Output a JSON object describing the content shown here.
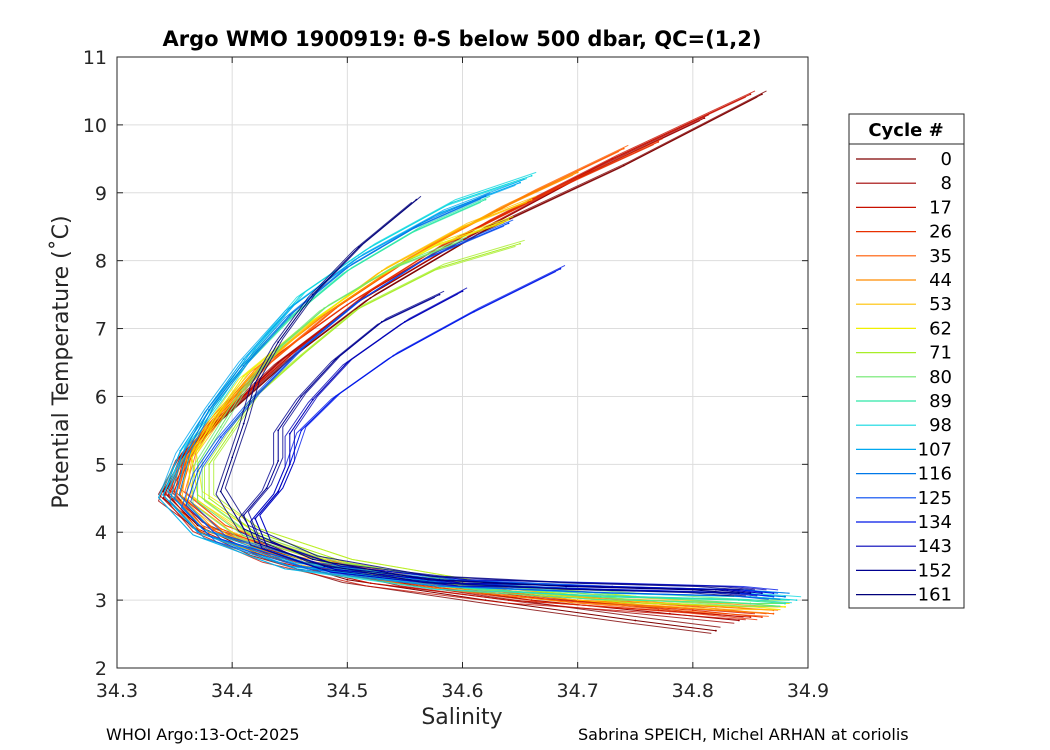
{
  "chart_data": {
    "type": "line",
    "title": "Argo WMO 1900919: θ-S below 500 dbar,  QC=(1,2)",
    "xlabel": "Salinity",
    "ylabel": "Potential Temperature (˚C)",
    "xlim": [
      34.3,
      34.9
    ],
    "ylim": [
      2,
      11
    ],
    "xticks": [
      "34.3",
      "34.4",
      "34.5",
      "34.6",
      "34.7",
      "34.8",
      "34.9"
    ],
    "yticks": [
      "2",
      "3",
      "4",
      "5",
      "6",
      "7",
      "8",
      "9",
      "10",
      "11"
    ],
    "grid": true,
    "legend": {
      "title": "Cycle #",
      "position": "right",
      "entries": [
        {
          "label": "0",
          "color": "#7f0000"
        },
        {
          "label": "8",
          "color": "#a00000"
        },
        {
          "label": "17",
          "color": "#c81000"
        },
        {
          "label": "26",
          "color": "#e83000"
        },
        {
          "label": "35",
          "color": "#ff5a00"
        },
        {
          "label": "44",
          "color": "#ff8c00"
        },
        {
          "label": "53",
          "color": "#ffc000"
        },
        {
          "label": "62",
          "color": "#f0f000"
        },
        {
          "label": "71",
          "color": "#a8ee28"
        },
        {
          "label": "80",
          "color": "#6ee86e"
        },
        {
          "label": "89",
          "color": "#2ee8a8"
        },
        {
          "label": "98",
          "color": "#10d8e0"
        },
        {
          "label": "107",
          "color": "#00a8f0"
        },
        {
          "label": "116",
          "color": "#0078e8"
        },
        {
          "label": "125",
          "color": "#0048f0"
        },
        {
          "label": "134",
          "color": "#0018e8"
        },
        {
          "label": "143",
          "color": "#0000b8"
        },
        {
          "label": "152",
          "color": "#000090"
        },
        {
          "label": "161",
          "color": "#00007a"
        }
      ]
    },
    "series": [
      {
        "name": "0",
        "color": "#7f0000",
        "x": [
          34.86,
          34.74,
          34.62,
          34.52,
          34.45,
          34.4,
          34.36,
          34.34,
          34.37,
          34.42,
          34.5,
          34.62,
          34.75,
          34.82
        ],
        "y": [
          10.45,
          9.4,
          8.45,
          7.45,
          6.55,
          5.8,
          5.2,
          4.6,
          4.1,
          3.7,
          3.3,
          3.0,
          2.7,
          2.55
        ]
      },
      {
        "name": "8",
        "color": "#a00000",
        "x": [
          34.81,
          34.71,
          34.6,
          34.51,
          34.44,
          34.39,
          34.355,
          34.34,
          34.38,
          34.46,
          34.55,
          34.66,
          34.78,
          34.84
        ],
        "y": [
          10.1,
          9.3,
          8.3,
          7.4,
          6.5,
          5.7,
          5.1,
          4.5,
          4.0,
          3.6,
          3.25,
          3.0,
          2.8,
          2.7
        ]
      },
      {
        "name": "17",
        "color": "#c81000",
        "x": [
          34.85,
          34.73,
          34.62,
          34.52,
          34.45,
          34.4,
          34.365,
          34.345,
          34.37,
          34.43,
          34.52,
          34.64,
          34.77,
          34.85
        ],
        "y": [
          10.45,
          9.5,
          8.55,
          7.55,
          6.6,
          5.85,
          5.2,
          4.55,
          4.05,
          3.6,
          3.25,
          3.0,
          2.85,
          2.75
        ]
      },
      {
        "name": "26",
        "color": "#e83000",
        "x": [
          34.77,
          34.68,
          34.58,
          34.5,
          34.43,
          34.39,
          34.36,
          34.35,
          34.39,
          34.46,
          34.56,
          34.68,
          34.8,
          34.86
        ],
        "y": [
          9.75,
          9.05,
          8.2,
          7.35,
          6.5,
          5.8,
          5.2,
          4.6,
          4.05,
          3.6,
          3.25,
          3.0,
          2.85,
          2.75
        ]
      },
      {
        "name": "35",
        "color": "#ff5a00",
        "x": [
          34.74,
          34.66,
          34.57,
          34.49,
          34.43,
          34.39,
          34.365,
          34.355,
          34.39,
          34.46,
          34.57,
          34.7,
          34.82,
          34.87
        ],
        "y": [
          9.65,
          9.0,
          8.2,
          7.3,
          6.45,
          5.75,
          5.15,
          4.55,
          4.05,
          3.6,
          3.25,
          3.0,
          2.85,
          2.8
        ]
      },
      {
        "name": "44",
        "color": "#ff8c00",
        "x": [
          34.7,
          34.63,
          34.55,
          34.48,
          34.42,
          34.385,
          34.36,
          34.35,
          34.38,
          34.45,
          34.56,
          34.7,
          34.82,
          34.87
        ],
        "y": [
          9.3,
          8.75,
          8.0,
          7.2,
          6.4,
          5.7,
          5.1,
          4.5,
          4.0,
          3.6,
          3.25,
          3.0,
          2.9,
          2.85
        ]
      },
      {
        "name": "53",
        "color": "#ffc000",
        "x": [
          34.66,
          34.6,
          34.53,
          34.47,
          34.42,
          34.39,
          34.365,
          34.36,
          34.4,
          34.48,
          34.6,
          34.73,
          34.84,
          34.88
        ],
        "y": [
          8.9,
          8.5,
          7.85,
          7.1,
          6.35,
          5.7,
          5.1,
          4.5,
          4.0,
          3.55,
          3.2,
          3.0,
          2.9,
          2.9
        ]
      },
      {
        "name": "62",
        "color": "#f0f000",
        "x": [
          34.64,
          34.58,
          34.52,
          34.46,
          34.41,
          34.385,
          34.365,
          34.37,
          34.42,
          34.5,
          34.62,
          34.75,
          34.85,
          34.88
        ],
        "y": [
          8.6,
          8.25,
          7.7,
          7.0,
          6.3,
          5.7,
          5.1,
          4.55,
          4.0,
          3.55,
          3.2,
          3.0,
          2.95,
          2.9
        ]
      },
      {
        "name": "71",
        "color": "#a8ee28",
        "x": [
          34.65,
          34.58,
          34.51,
          34.46,
          34.42,
          34.4,
          34.38,
          34.38,
          34.42,
          34.5,
          34.62,
          34.75,
          34.85,
          34.88
        ],
        "y": [
          8.25,
          7.9,
          7.3,
          6.6,
          6.0,
          5.5,
          5.0,
          4.5,
          4.0,
          3.55,
          3.2,
          3.0,
          2.95,
          2.95
        ]
      },
      {
        "name": "80",
        "color": "#6ee86e",
        "x": [
          34.6,
          34.54,
          34.48,
          34.44,
          34.41,
          34.39,
          34.37,
          34.37,
          34.41,
          34.49,
          34.61,
          34.75,
          34.85,
          34.88
        ],
        "y": [
          8.3,
          7.9,
          7.3,
          6.7,
          6.1,
          5.55,
          5.0,
          4.45,
          3.95,
          3.5,
          3.2,
          3.05,
          2.95,
          2.95
        ]
      },
      {
        "name": "89",
        "color": "#2ee8a8",
        "x": [
          34.62,
          34.56,
          34.5,
          34.45,
          34.41,
          34.38,
          34.36,
          34.35,
          34.38,
          34.46,
          34.58,
          34.72,
          34.84,
          34.88
        ],
        "y": [
          8.9,
          8.45,
          7.85,
          7.15,
          6.45,
          5.8,
          5.15,
          4.5,
          3.95,
          3.5,
          3.2,
          3.05,
          3.0,
          2.95
        ]
      },
      {
        "name": "98",
        "color": "#10d8e0",
        "x": [
          34.66,
          34.59,
          34.52,
          34.46,
          34.42,
          34.39,
          34.36,
          34.34,
          34.37,
          34.45,
          34.58,
          34.73,
          34.85,
          34.89
        ],
        "y": [
          9.25,
          8.85,
          8.2,
          7.5,
          6.7,
          5.95,
          5.25,
          4.55,
          4.0,
          3.5,
          3.2,
          3.1,
          3.05,
          3.0
        ]
      },
      {
        "name": "107",
        "color": "#00a8f0",
        "x": [
          34.65,
          34.58,
          34.51,
          34.45,
          34.41,
          34.38,
          34.355,
          34.34,
          34.37,
          34.45,
          34.58,
          34.72,
          34.84,
          34.88
        ],
        "y": [
          9.15,
          8.7,
          8.05,
          7.3,
          6.55,
          5.85,
          5.2,
          4.55,
          4.0,
          3.5,
          3.25,
          3.15,
          3.1,
          3.05
        ]
      },
      {
        "name": "116",
        "color": "#0078e8",
        "x": [
          34.62,
          34.56,
          34.5,
          34.45,
          34.41,
          34.38,
          34.36,
          34.35,
          34.38,
          34.46,
          34.58,
          34.72,
          34.84,
          34.88
        ],
        "y": [
          8.95,
          8.5,
          7.9,
          7.2,
          6.45,
          5.8,
          5.15,
          4.5,
          3.95,
          3.5,
          3.25,
          3.15,
          3.1,
          3.05
        ]
      },
      {
        "name": "125",
        "color": "#0048f0",
        "x": [
          34.64,
          34.57,
          34.51,
          34.46,
          34.42,
          34.39,
          34.37,
          34.36,
          34.39,
          34.47,
          34.59,
          34.73,
          34.84,
          34.87
        ],
        "y": [
          8.55,
          8.05,
          7.4,
          6.7,
          6.0,
          5.4,
          4.9,
          4.4,
          3.9,
          3.5,
          3.25,
          3.15,
          3.1,
          3.05
        ]
      },
      {
        "name": "134",
        "color": "#0018e8",
        "x": [
          34.685,
          34.61,
          34.54,
          34.49,
          34.46,
          34.45,
          34.44,
          34.42,
          34.43,
          34.49,
          34.6,
          34.73,
          34.84,
          34.87
        ],
        "y": [
          7.88,
          7.25,
          6.6,
          6.0,
          5.5,
          5.0,
          4.6,
          4.2,
          3.8,
          3.45,
          3.25,
          3.2,
          3.15,
          3.1
        ]
      },
      {
        "name": "143",
        "color": "#0000b8",
        "x": [
          34.6,
          34.55,
          34.5,
          34.47,
          34.45,
          34.45,
          34.44,
          34.42,
          34.43,
          34.49,
          34.6,
          34.72,
          34.83,
          34.86
        ],
        "y": [
          7.55,
          7.1,
          6.5,
          5.95,
          5.45,
          5.0,
          4.6,
          4.2,
          3.8,
          3.45,
          3.25,
          3.2,
          3.15,
          3.1
        ]
      },
      {
        "name": "152",
        "color": "#000090",
        "x": [
          34.58,
          34.53,
          34.49,
          34.46,
          34.44,
          34.44,
          34.43,
          34.41,
          34.42,
          34.48,
          34.58,
          34.7,
          34.82,
          34.85
        ],
        "y": [
          7.5,
          7.1,
          6.55,
          6.0,
          5.5,
          5.05,
          4.65,
          4.25,
          3.85,
          3.5,
          3.3,
          3.2,
          3.15,
          3.1
        ]
      },
      {
        "name": "161",
        "color": "#00007a",
        "x": [
          34.56,
          34.51,
          34.47,
          34.44,
          34.42,
          34.41,
          34.4,
          34.39,
          34.41,
          34.47,
          34.57,
          34.69,
          34.8,
          34.84
        ],
        "y": [
          8.9,
          8.2,
          7.5,
          6.8,
          6.2,
          5.6,
          5.1,
          4.6,
          4.05,
          3.6,
          3.3,
          3.2,
          3.15,
          3.1
        ]
      }
    ]
  },
  "footer": {
    "left": "WHOI Argo:13-Oct-2025",
    "right": "Sabrina SPEICH, Michel ARHAN at coriolis"
  }
}
